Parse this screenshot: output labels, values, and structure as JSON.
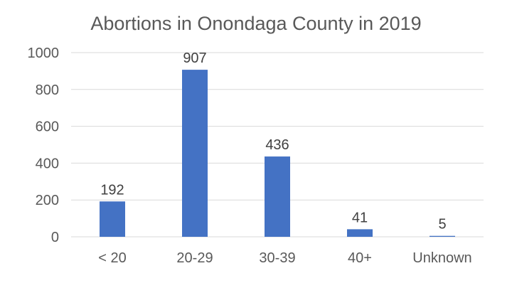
{
  "chart_data": {
    "type": "bar",
    "title": "Abortions in Onondaga County in 2019",
    "categories": [
      "< 20",
      "20-29",
      "30-39",
      "40+",
      "Unknown"
    ],
    "values": [
      192,
      907,
      436,
      41,
      5
    ],
    "data_labels": [
      "192",
      "907",
      "436",
      "41",
      "5"
    ],
    "xlabel": "",
    "ylabel": "",
    "ylim": [
      0,
      1000
    ],
    "yticks": [
      0,
      200,
      400,
      600,
      800,
      1000
    ],
    "grid": true,
    "legend": "none",
    "bar_color": "#4472C4",
    "gridline_color": "#D9D9D9",
    "text_color": "#595959"
  }
}
